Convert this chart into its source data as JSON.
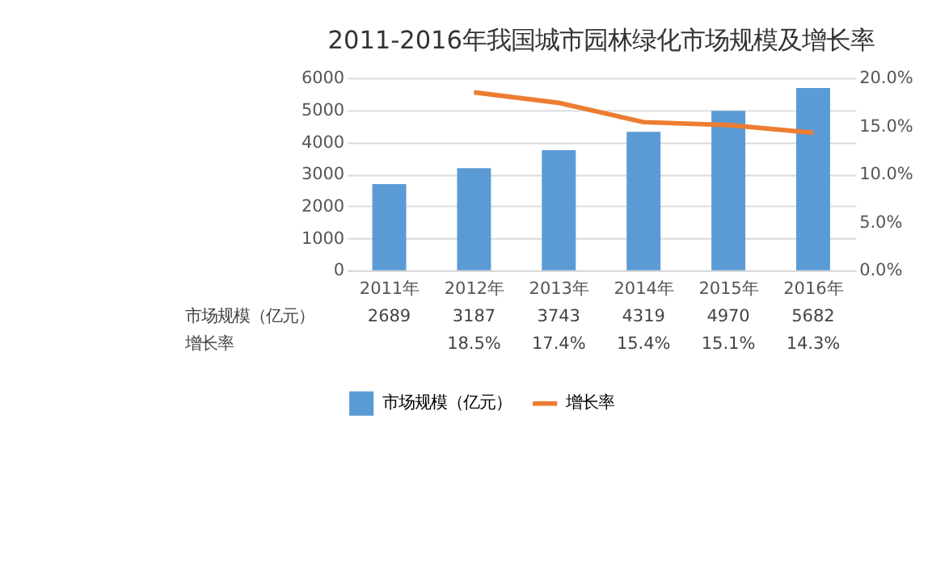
{
  "chart_data": {
    "type": "bar",
    "title": "2011-2016年我国城市园林绿化市场规模及增长率",
    "categories": [
      "2011年",
      "2012年",
      "2013年",
      "2014年",
      "2015年",
      "2016年"
    ],
    "series": [
      {
        "name": "市场规模（亿元）",
        "color": "#5b9bd5",
        "values": [
          2689,
          3187,
          3743,
          4319,
          4970,
          5682
        ],
        "value_labels": [
          "2689",
          "3187",
          "3743",
          "4319",
          "4970",
          "5682"
        ]
      },
      {
        "name": "增长率",
        "type": "line",
        "axis": "y2",
        "color": "#ed7d31",
        "values": [
          null,
          18.5,
          17.4,
          15.4,
          15.1,
          14.3
        ],
        "value_labels": [
          null,
          "18.5%",
          "17.4%",
          "15.4%",
          "15.1%",
          "14.3%"
        ]
      }
    ],
    "ylim": [
      0,
      6000
    ],
    "yticks": [
      0,
      1000,
      2000,
      3000,
      4000,
      5000,
      6000
    ],
    "y2lim": [
      0,
      20
    ],
    "y2ticks": [
      {
        "value": 0,
        "label": "0.0%"
      },
      {
        "value": 5,
        "label": "5.0%"
      },
      {
        "value": 10,
        "label": "10.0%"
      },
      {
        "value": 15,
        "label": "15.0%"
      },
      {
        "value": 20,
        "label": "20.0%"
      }
    ],
    "grid": "y",
    "legend": "bottom"
  }
}
